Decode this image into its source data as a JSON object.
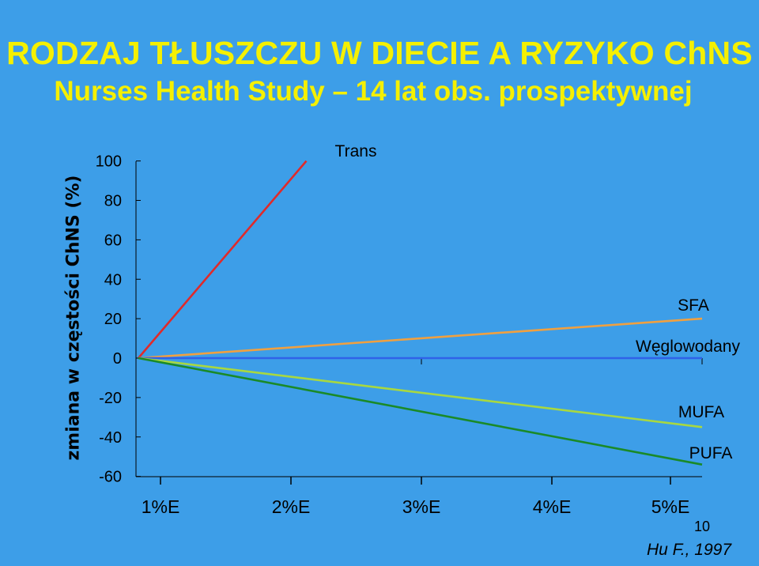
{
  "header": {
    "title": "RODZAJ TŁUSZCZU W DIECIE A RYZYKO ChNS",
    "subtitle": "Nurses Health Study – 14 lat obs. prospektywnej"
  },
  "footer": {
    "page_number": "10",
    "source": "Hu F., 1997"
  },
  "colors": {
    "background": "#3d9ee8",
    "title": "#f5f000"
  },
  "chart_data": {
    "type": "line",
    "ylabel": "zmiana w częstości ChNS (%)",
    "xlabel": "",
    "ylim": [
      -60,
      100
    ],
    "yticks": [
      "100",
      "80",
      "60",
      "40",
      "20",
      "0",
      "-20",
      "-40",
      "-60"
    ],
    "ytick_values": [
      100,
      80,
      60,
      40,
      20,
      0,
      -20,
      -40,
      -60
    ],
    "xtick_labels": [
      "1%E",
      "2%E",
      "3%E",
      "4%E",
      "5%E"
    ],
    "xlim": [
      0,
      5.2
    ],
    "grid": false,
    "series": [
      {
        "name": "Trans",
        "color": "#e02a2a",
        "points": [
          [
            0,
            0
          ],
          [
            1.55,
            100
          ]
        ]
      },
      {
        "name": "SFA",
        "color": "#f0a040",
        "points": [
          [
            0,
            0
          ],
          [
            5.2,
            20
          ]
        ]
      },
      {
        "name": "Węglowodany",
        "color": "#2f62e8",
        "points": [
          [
            0,
            0
          ],
          [
            5.2,
            0
          ]
        ]
      },
      {
        "name": "MUFA",
        "color": "#a8d840",
        "points": [
          [
            0,
            0
          ],
          [
            5.2,
            -35
          ]
        ]
      },
      {
        "name": "PUFA",
        "color": "#1a8a28",
        "points": [
          [
            0,
            0
          ],
          [
            5.2,
            -54
          ]
        ]
      }
    ]
  }
}
